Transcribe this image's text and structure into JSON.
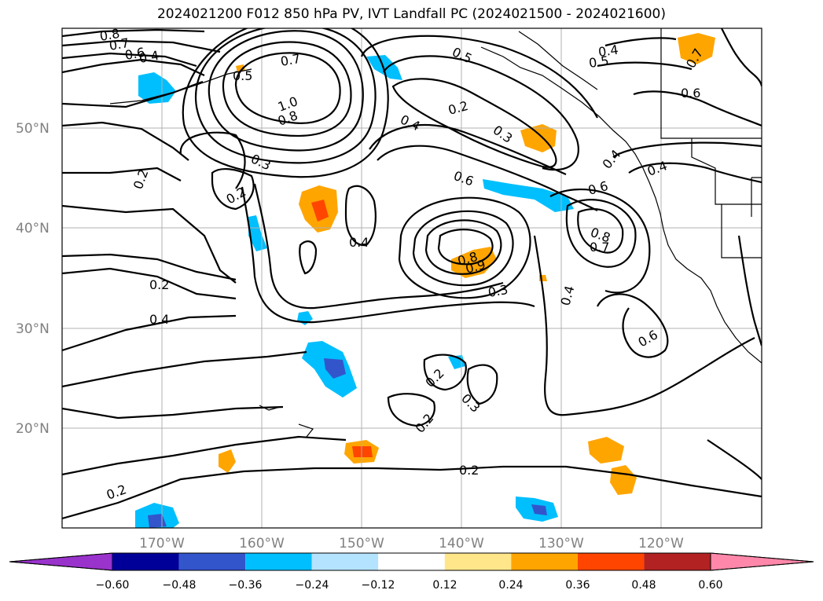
{
  "title": "2024021200 F012 850 hPa PV, IVT Landfall PC (2024021500 - 2024021600)",
  "lat_labels": [
    "50°N",
    "40°N",
    "30°N",
    "20°N"
  ],
  "lon_labels": [
    "170°W",
    "160°W",
    "150°W",
    "140°W",
    "130°W",
    "120°W"
  ],
  "colorbar": {
    "tick_labels": [
      "−0.60",
      "−0.48",
      "−0.36",
      "−0.24",
      "−0.12",
      "0.12",
      "0.24",
      "0.36",
      "0.48",
      "0.60"
    ],
    "colors": [
      "#9933cc",
      "#000099",
      "#3355cc",
      "#00bfff",
      "#b3e3ff",
      "#ffffff",
      "#ffe68a",
      "#ffa500",
      "#ff4500",
      "#b22222",
      "#ff88aa"
    ]
  },
  "contour_labels": [
    "0.8",
    "0.7",
    "0.6",
    "0.4",
    "0.5",
    "0.7",
    "1.0",
    "0.8",
    "0.5",
    "0.2",
    "0.4",
    "0.4",
    "0.5",
    "0.7",
    "0.6",
    "0.3",
    "0.3",
    "0.2",
    "0.2",
    "0.6",
    "0.6",
    "0.4",
    "0.4",
    "0.8",
    "0.7",
    "0.8",
    "0.9",
    "0.2",
    "0.3",
    "0.4",
    "0.4",
    "0.6",
    "0.4",
    "0.2",
    "0.3",
    "0.2",
    "0.2",
    "0.2"
  ]
}
